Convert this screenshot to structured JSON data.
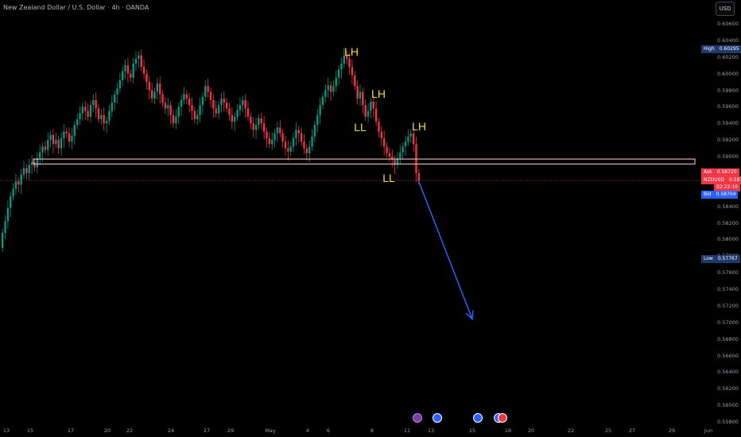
{
  "header": {
    "title": "New Zealand Dollar / U.S. Dollar · 4h · OANDA",
    "currency": "USD"
  },
  "price_axis": {
    "ticks": [
      "0.60600",
      "0.60400",
      "0.60200",
      "0.60000",
      "0.59800",
      "0.59600",
      "0.59400",
      "0.59200",
      "0.59000",
      "0.58800",
      "0.58600",
      "0.58400",
      "0.58200",
      "0.58000",
      "0.57800",
      "0.57600",
      "0.57400",
      "0.57200",
      "0.57000",
      "0.56800",
      "0.56600",
      "0.56400",
      "0.56200",
      "0.56000",
      "0.55800"
    ],
    "high": {
      "label": "High",
      "value": "0.60295"
    },
    "low": {
      "label": "Low",
      "value": "0.57767"
    },
    "ask": {
      "label": "Ask",
      "value": "0.58720"
    },
    "last": {
      "label": "NZDUSD",
      "value": "0.58712",
      "countdown": "02:22:10"
    },
    "bid": {
      "label": "Bid",
      "value": "0.58704"
    }
  },
  "time_axis": {
    "labels": [
      "13",
      "15",
      "17",
      "20",
      "22",
      "24",
      "27",
      "29",
      "May",
      "4",
      "6",
      "8",
      "11",
      "13",
      "15",
      "18",
      "20",
      "22",
      "25",
      "27",
      "29",
      "Jun"
    ]
  },
  "annotations": {
    "lh1": "LH",
    "lh2": "LH",
    "lh3": "LH",
    "ll1": "LL",
    "ll2": "LL"
  },
  "colors": {
    "up": "#089981",
    "down": "#f23645",
    "zone": "#ffd0d0",
    "arrow": "#2962ff",
    "label": "#f5d742",
    "ask": "#f23645",
    "bid": "#2962ff",
    "high_low": "#1e3a6e"
  },
  "chart_data": {
    "type": "candlestick",
    "symbol": "NZDUSD",
    "timeframe": "4h",
    "ylim": [
      0.558,
      0.607
    ],
    "close": [
      0.5808,
      0.5822,
      0.5838,
      0.5852,
      0.5861,
      0.587,
      0.5866,
      0.5878,
      0.5886,
      0.588,
      0.589,
      0.5893,
      0.5887,
      0.5898,
      0.5905,
      0.5912,
      0.5908,
      0.592,
      0.5926,
      0.5915,
      0.592,
      0.591,
      0.5922,
      0.593,
      0.5928,
      0.5918,
      0.5925,
      0.5938,
      0.5945,
      0.5952,
      0.596,
      0.5955,
      0.5948,
      0.5962,
      0.5968,
      0.5958,
      0.5945,
      0.595,
      0.594,
      0.5943,
      0.5955,
      0.5965,
      0.5975,
      0.5982,
      0.5992,
      0.6003,
      0.601,
      0.6,
      0.5995,
      0.6012,
      0.6018,
      0.6022,
      0.6008,
      0.6,
      0.599,
      0.598,
      0.597,
      0.5978,
      0.5988,
      0.5975,
      0.5965,
      0.5958,
      0.5962,
      0.595,
      0.594,
      0.5948,
      0.596,
      0.5968,
      0.5975,
      0.597,
      0.5962,
      0.5955,
      0.5945,
      0.595,
      0.5962,
      0.5972,
      0.5985,
      0.5978,
      0.5968,
      0.5958,
      0.5952,
      0.5962,
      0.597,
      0.5965,
      0.5958,
      0.595,
      0.5942,
      0.5948,
      0.5956,
      0.5962,
      0.5968,
      0.5958,
      0.5948,
      0.594,
      0.5932,
      0.5938,
      0.5946,
      0.594,
      0.593,
      0.5922,
      0.5915,
      0.592,
      0.5928,
      0.5935,
      0.5928,
      0.5918,
      0.591,
      0.5906,
      0.5912,
      0.5922,
      0.5932,
      0.5928,
      0.5918,
      0.591,
      0.5904,
      0.5912,
      0.5924,
      0.5938,
      0.595,
      0.5962,
      0.5972,
      0.598,
      0.5986,
      0.5978,
      0.5985,
      0.5995,
      0.6005,
      0.6012,
      0.6022,
      0.6018,
      0.6008,
      0.5998,
      0.5985,
      0.597,
      0.5978,
      0.5962,
      0.5948,
      0.5955,
      0.5966,
      0.5958,
      0.5942,
      0.593,
      0.5922,
      0.5912,
      0.5904,
      0.59,
      0.5896,
      0.589,
      0.5898,
      0.5905,
      0.5912,
      0.5918,
      0.5924,
      0.5928,
      0.5915,
      0.588,
      0.5871
    ]
  },
  "zone": {
    "top": 0.5897,
    "bottom": 0.5891
  },
  "projection": {
    "from_index": 155,
    "from_price": 0.5871,
    "to_date": "15",
    "to_price": 0.5704
  },
  "events": [
    "lightning",
    "us",
    "us",
    "us"
  ]
}
